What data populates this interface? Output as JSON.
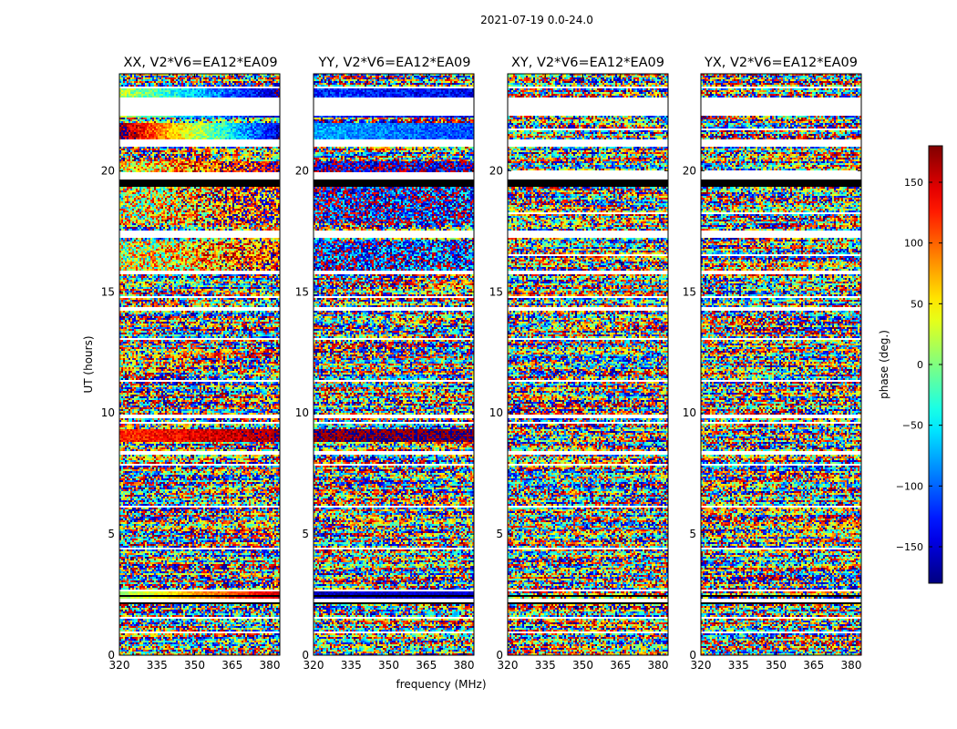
{
  "figure_title": "2021-07-19 0.0-24.0",
  "chart_data": {
    "type": "heatmap",
    "title": "2021-07-19 0.0-24.0",
    "xlabel": "frequency (MHz)",
    "ylabel": "UT (hours)",
    "xlim": [
      320,
      384
    ],
    "ylim": [
      0,
      24
    ],
    "xticks": [
      320,
      335,
      350,
      365,
      380
    ],
    "yticks": [
      0,
      5,
      10,
      15,
      20
    ],
    "colormap": "jet",
    "colorbar": {
      "label": "phase (deg.)",
      "range": [
        -180,
        180
      ],
      "ticks": [
        -150,
        -100,
        -50,
        0,
        50,
        100,
        150
      ],
      "tick_labels": [
        "−150",
        "−100",
        "−50",
        "0",
        "50",
        "100",
        "150"
      ]
    },
    "flagged_time_ranges_hours": [
      [
        22.3,
        23.0
      ],
      [
        21.0,
        21.3
      ],
      [
        19.6,
        19.9
      ],
      [
        17.2,
        17.5
      ],
      [
        15.7,
        15.9
      ],
      [
        14.2,
        14.4
      ],
      [
        9.8,
        9.9
      ],
      [
        8.3,
        8.4
      ],
      [
        2.2,
        2.3
      ],
      [
        1.5,
        1.6
      ]
    ],
    "dark_bands_hours": [
      [
        19.3,
        19.6
      ],
      [
        2.4,
        2.5
      ],
      [
        2.1,
        2.2
      ]
    ],
    "panels": [
      {
        "title": "XX, V2*V6=EA12*EA09",
        "coherent_bands": [
          {
            "t_start": 22.2,
            "t_end": 23.4,
            "phase_start": 20,
            "phase_end": -160,
            "noise": 0.2
          },
          {
            "t_start": 21.3,
            "t_end": 22.0,
            "phase_start": 175,
            "phase_end": -150,
            "noise": 0.2
          },
          {
            "t_start": 19.9,
            "t_end": 20.4,
            "phase_start": 30,
            "phase_end": 170,
            "noise": 0.5
          },
          {
            "t_start": 17.8,
            "t_end": 19.3,
            "phase_start": 20,
            "phase_end": 150,
            "noise": 0.7
          },
          {
            "t_start": 15.9,
            "t_end": 17.1,
            "phase_start": 20,
            "phase_end": 120,
            "noise": 0.6
          },
          {
            "t_start": 8.8,
            "t_end": 9.3,
            "phase_start": 120,
            "phase_end": 170,
            "noise": 0.15
          },
          {
            "t_start": 2.3,
            "t_end": 2.6,
            "phase_start": 10,
            "phase_end": 150,
            "noise": 0.1
          }
        ]
      },
      {
        "title": "YY, V2*V6=EA12*EA09",
        "coherent_bands": [
          {
            "t_start": 22.2,
            "t_end": 23.4,
            "phase_start": -120,
            "phase_end": -140,
            "noise": 0.2
          },
          {
            "t_start": 21.3,
            "t_end": 22.0,
            "phase_start": -75,
            "phase_end": -110,
            "noise": 0.15
          },
          {
            "t_start": 19.9,
            "t_end": 20.4,
            "phase_start": -160,
            "phase_end": -150,
            "noise": 0.4
          },
          {
            "t_start": 17.8,
            "t_end": 19.3,
            "phase_start": -150,
            "phase_end": -130,
            "noise": 0.6
          },
          {
            "t_start": 15.9,
            "t_end": 17.1,
            "phase_start": -140,
            "phase_end": -120,
            "noise": 0.6
          },
          {
            "t_start": 8.8,
            "t_end": 9.3,
            "phase_start": 175,
            "phase_end": 180,
            "noise": 0.1
          },
          {
            "t_start": 2.3,
            "t_end": 2.6,
            "phase_start": -160,
            "phase_end": -150,
            "noise": 0.1
          }
        ]
      },
      {
        "title": "XY, V2*V6=EA12*EA09",
        "coherent_bands": []
      },
      {
        "title": "YX, V2*V6=EA12*EA09",
        "coherent_bands": []
      }
    ]
  }
}
